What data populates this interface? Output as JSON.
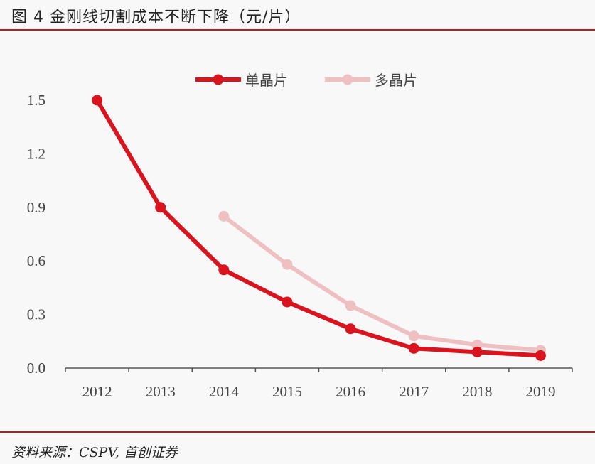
{
  "title": "图 4 金刚线切割成本不断下降（元/片）",
  "source": "资料来源：CSPV, 首创证券",
  "chart_data": {
    "type": "line",
    "title": "图 4 金刚线切割成本不断下降（元/片）",
    "xlabel": "",
    "ylabel": "元/片",
    "categories": [
      "2012",
      "2013",
      "2014",
      "2015",
      "2016",
      "2017",
      "2018",
      "2019"
    ],
    "ylim": [
      0,
      1.5
    ],
    "yticks": [
      "0.0",
      "0.3",
      "0.6",
      "0.9",
      "1.2",
      "1.5"
    ],
    "legend_position": "top-center",
    "series": [
      {
        "name": "单晶片",
        "color": "#d9141e",
        "values": [
          1.5,
          0.9,
          0.55,
          0.37,
          0.22,
          0.11,
          0.09,
          0.07
        ]
      },
      {
        "name": "多晶片",
        "color": "#efc0c2",
        "values": [
          null,
          null,
          0.85,
          0.58,
          0.35,
          0.18,
          0.13,
          0.1
        ]
      }
    ]
  }
}
